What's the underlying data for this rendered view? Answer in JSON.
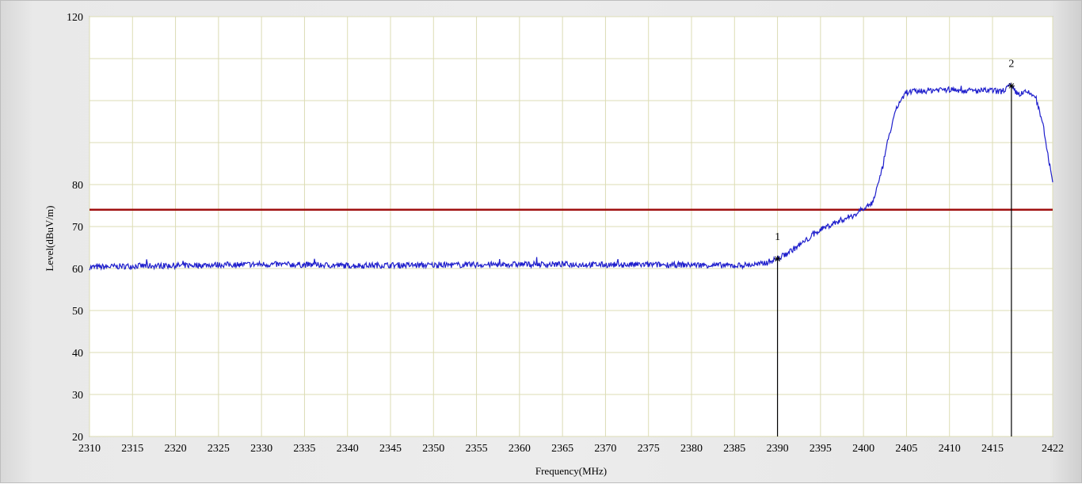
{
  "chart_data": {
    "type": "line",
    "xlabel": "Frequency(MHz)",
    "ylabel": "Level(dBuV/m)",
    "xlim": [
      2310,
      2422
    ],
    "ylim": [
      20,
      120
    ],
    "x_ticks": [
      2310,
      2315,
      2320,
      2325,
      2330,
      2335,
      2340,
      2345,
      2350,
      2355,
      2360,
      2365,
      2370,
      2375,
      2380,
      2385,
      2390,
      2395,
      2400,
      2405,
      2410,
      2415,
      2422
    ],
    "y_ticks": [
      20,
      30,
      40,
      50,
      60,
      70,
      80,
      120
    ],
    "grid": true,
    "limit_line": {
      "y": 74,
      "color": "#a01010"
    },
    "series": [
      {
        "color": "#1f1fcc",
        "x": [
          2310,
          2315,
          2320,
          2325,
          2330,
          2335,
          2340,
          2345,
          2350,
          2355,
          2360,
          2365,
          2370,
          2375,
          2380,
          2385,
          2388,
          2390,
          2391,
          2393,
          2395,
          2397,
          2399,
          2400,
          2401,
          2402,
          2403,
          2404,
          2405,
          2407,
          2409,
          2411,
          2413,
          2415,
          2416,
          2417,
          2418,
          2419,
          2420,
          2421,
          2422
        ],
        "values": [
          60.3,
          60.6,
          60.7,
          60.9,
          61.0,
          60.9,
          60.7,
          60.8,
          60.8,
          60.9,
          61.0,
          61.0,
          60.9,
          60.9,
          60.9,
          60.7,
          61.0,
          62.3,
          63.5,
          66.2,
          69.3,
          71.2,
          72.8,
          74.5,
          75.5,
          82.0,
          92.0,
          99.0,
          102.0,
          102.3,
          102.7,
          102.5,
          102.3,
          102.4,
          102.1,
          103.5,
          101.5,
          102.0,
          101.0,
          93.0,
          80.0
        ]
      }
    ],
    "markers": [
      {
        "label": "1",
        "x": 2390,
        "y": 62.3
      },
      {
        "label": "2",
        "x": 2417.2,
        "y": 103.5
      }
    ]
  }
}
